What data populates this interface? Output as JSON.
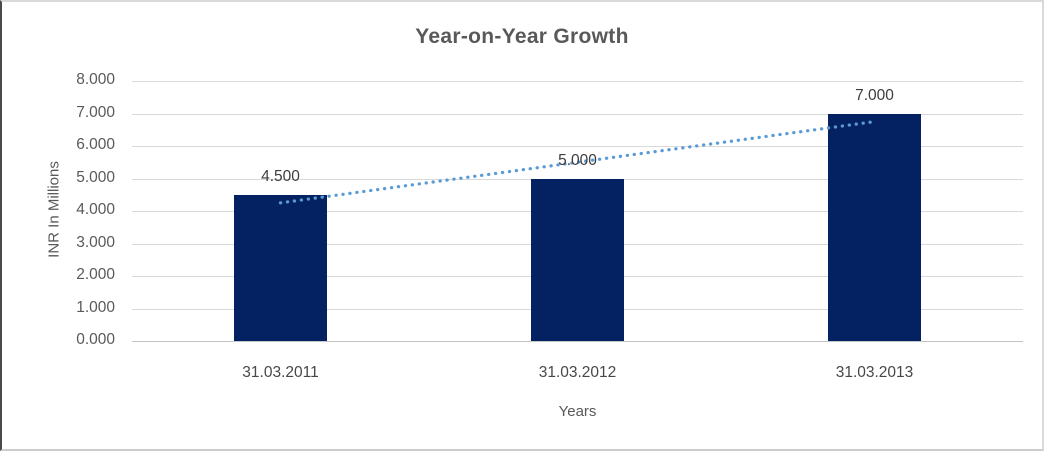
{
  "chart_data": {
    "type": "bar",
    "title": "Year-on-Year Growth",
    "categories": [
      "31.03.2011",
      "31.03.2012",
      "31.03.2013"
    ],
    "values": [
      4.5,
      5.0,
      7.0
    ],
    "data_labels": [
      "4.500",
      "5.000",
      "7.000"
    ],
    "xlabel": "Years",
    "ylabel": "INR In Millions",
    "ylim": [
      0,
      8
    ],
    "ytick_step": 1,
    "ytick_labels": [
      "0.000",
      "1.000",
      "2.000",
      "3.000",
      "4.000",
      "5.000",
      "6.000",
      "7.000",
      "8.000"
    ],
    "grid": true,
    "legend": "none",
    "bar_color": "#042261",
    "trendline": {
      "type": "linear",
      "style": "dotted",
      "color": "#5b9bd5",
      "start_value": 4.25,
      "end_value": 6.75
    },
    "colors": {
      "title_text": "#595959",
      "axis_text": "#595959",
      "gridline": "#d9d9d9"
    }
  }
}
